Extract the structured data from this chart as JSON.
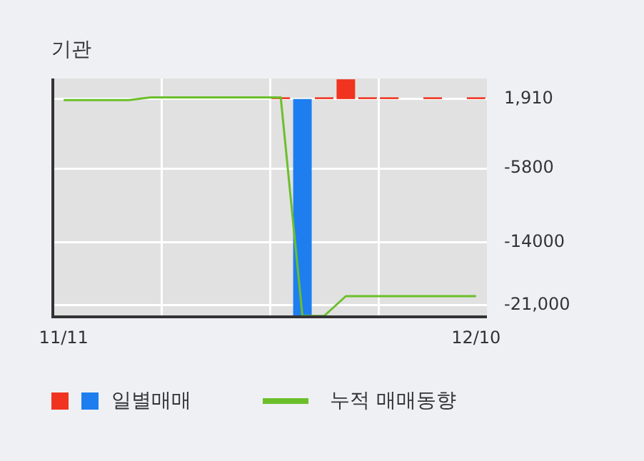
{
  "chart_data": {
    "type": "bar",
    "title": "기관",
    "categories": [
      "11/11",
      null,
      null,
      null,
      null,
      null,
      null,
      null,
      null,
      null,
      null,
      null,
      null,
      null,
      null,
      null,
      null,
      null,
      null,
      "12/10"
    ],
    "series": [
      {
        "name": "일별매매",
        "colors": [
          null,
          null,
          null,
          null,
          null,
          null,
          null,
          null,
          null,
          null,
          "#f03420",
          "#1e7ef0",
          "#f03420",
          "#f03420",
          "#f03420",
          "#f03420",
          null,
          "#f03420",
          null,
          "#f03420"
        ],
        "base": [
          null,
          null,
          null,
          null,
          null,
          null,
          null,
          null,
          null,
          null,
          1910,
          1910,
          1910,
          1910,
          1910,
          1910,
          null,
          1910,
          null,
          1910
        ],
        "values": [
          null,
          null,
          null,
          null,
          null,
          null,
          null,
          null,
          null,
          null,
          200,
          -24200,
          200,
          2200,
          200,
          200,
          null,
          200,
          null,
          200
        ]
      },
      {
        "name": "누적 매매동향",
        "type": "line",
        "color": "#6cbf2a",
        "values": [
          1800,
          1800,
          1800,
          1800,
          2100,
          2100,
          2100,
          2100,
          2100,
          2100,
          2100,
          -22200,
          -22200,
          -20000,
          -20000,
          -20000,
          -20000,
          -20000,
          -20000,
          -20000
        ]
      }
    ],
    "ylim": [
      -22300,
      4200
    ],
    "yticks": [
      {
        "value": 1910,
        "label": "1,910"
      },
      -5800,
      -14000,
      {
        "value": -21000,
        "label": "-21,000"
      }
    ],
    "grid": true,
    "legend": "bottom",
    "marker": "none"
  }
}
